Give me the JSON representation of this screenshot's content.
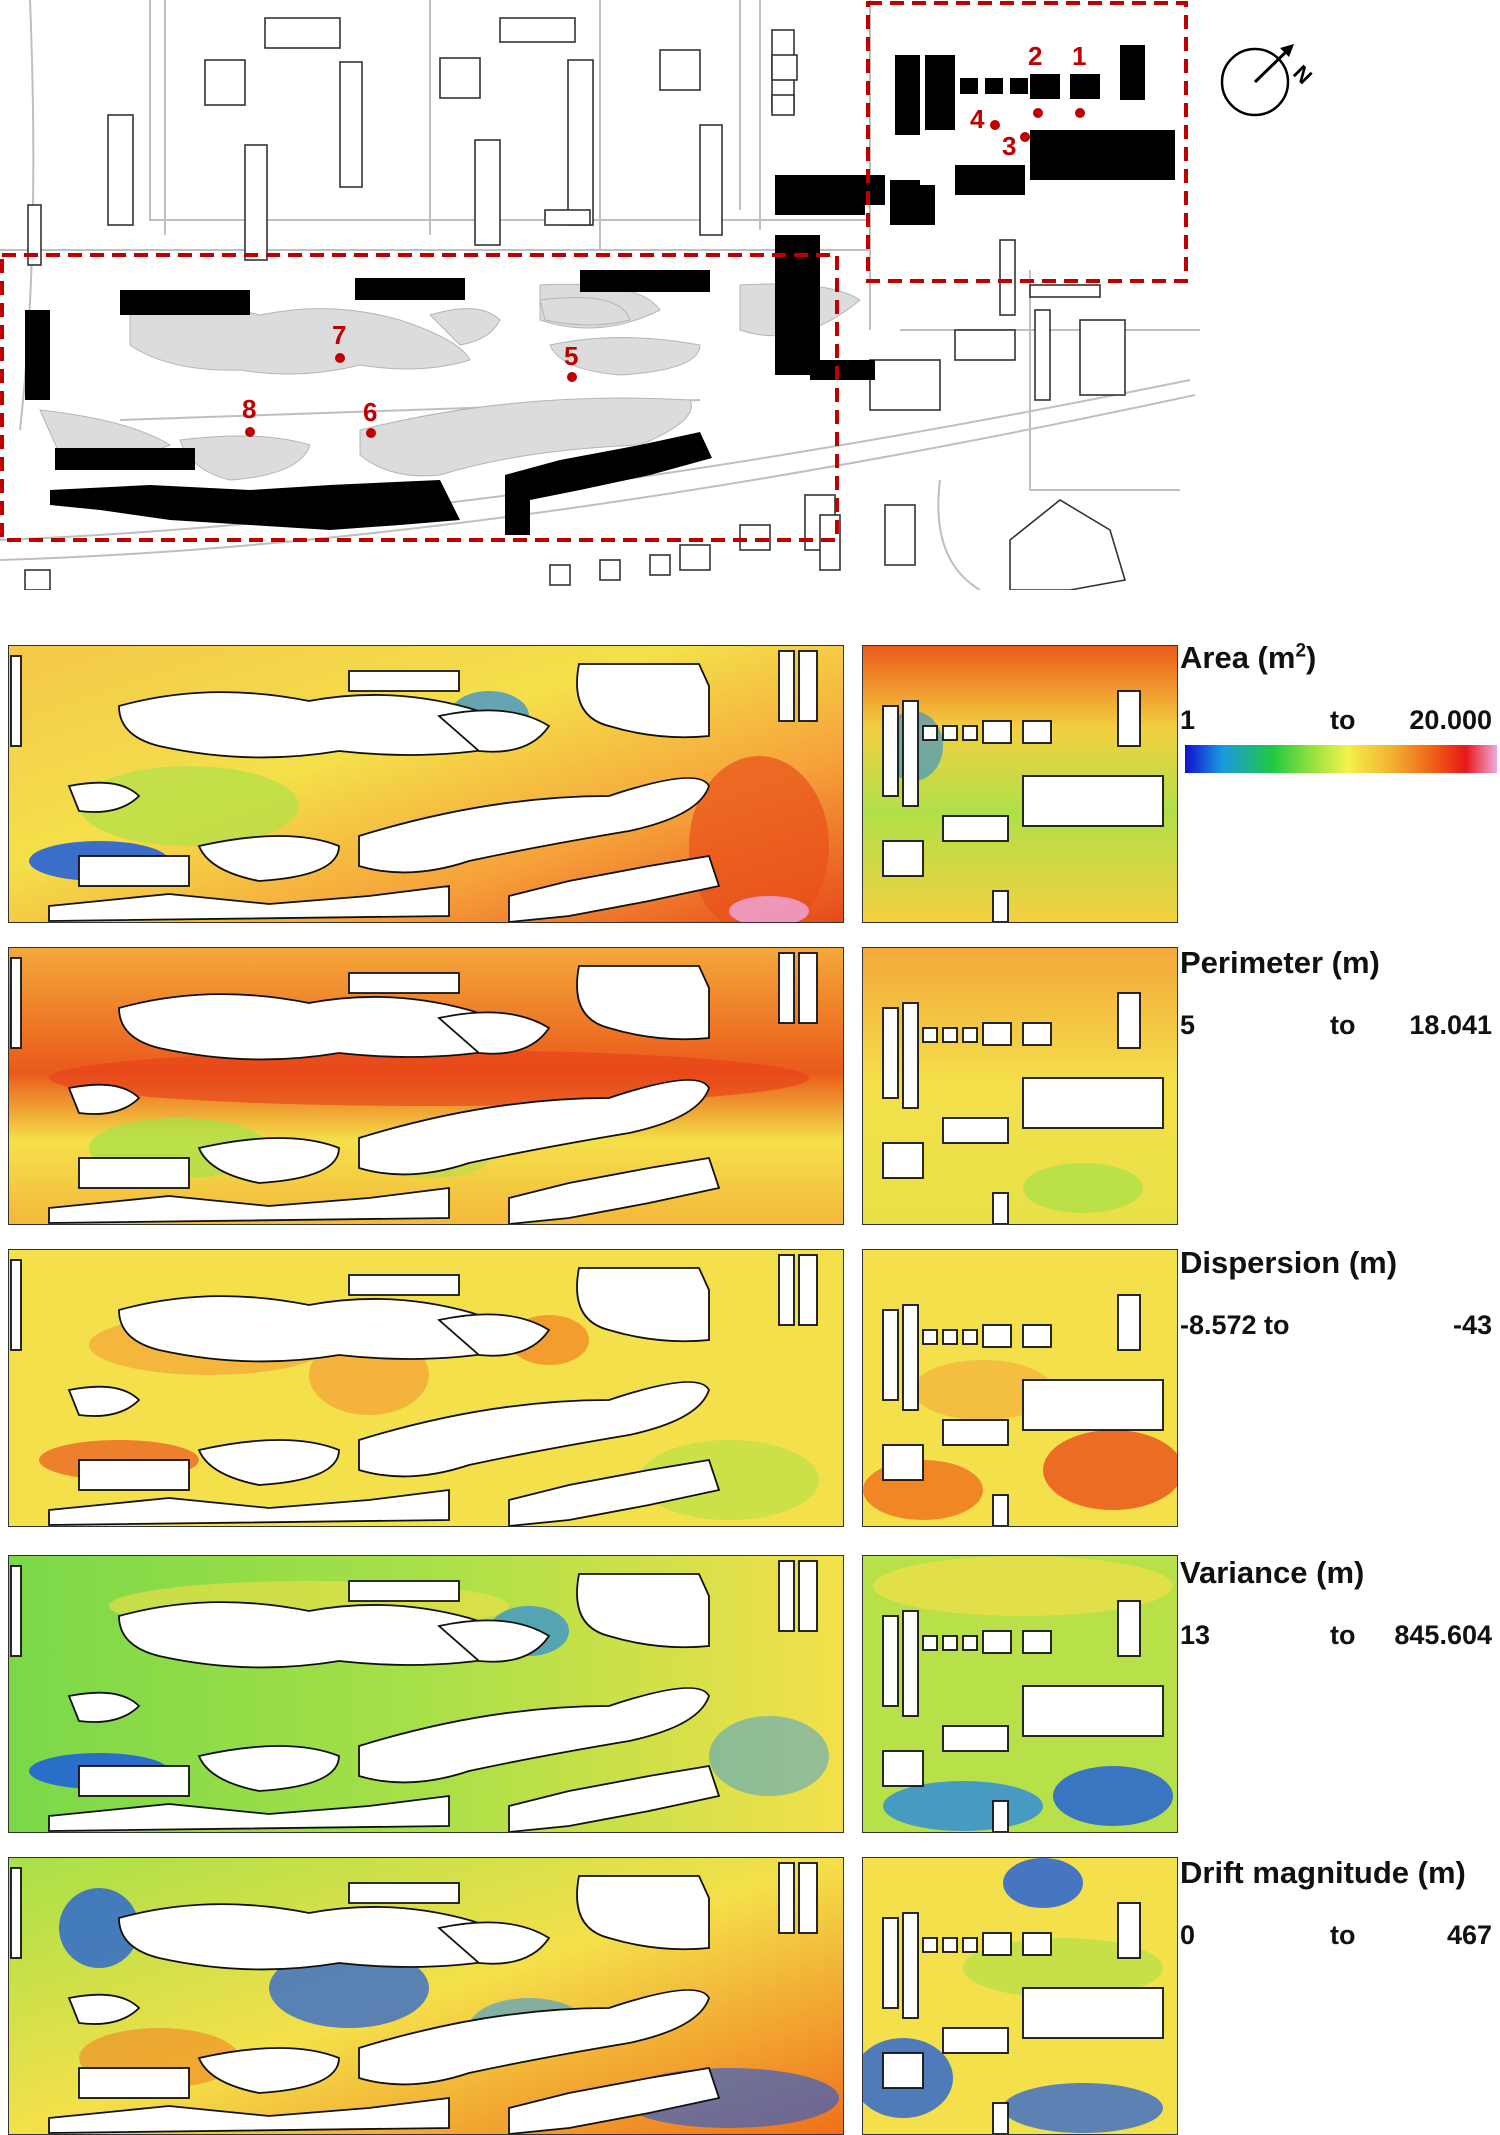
{
  "map": {
    "compass_label": "N",
    "markers": [
      {
        "label": "1"
      },
      {
        "label": "2"
      },
      {
        "label": "3"
      },
      {
        "label": "4"
      },
      {
        "label": "5"
      },
      {
        "label": "6"
      },
      {
        "label": "7"
      },
      {
        "label": "8"
      }
    ]
  },
  "legend": {
    "area": {
      "title": "Area (m",
      "title_sup": "2",
      "title_end": ")",
      "min": "1",
      "to": "to",
      "max": "20.000"
    },
    "perimeter": {
      "title": "Perimeter (m)",
      "min": "5",
      "to": "to",
      "max": "18.041"
    },
    "dispersion": {
      "title": "Dispersion (m)",
      "min": "-8.572 to",
      "max": "-43"
    },
    "variance": {
      "title": "Variance (m)",
      "min": "13",
      "to": "to",
      "max": "845.604"
    },
    "drift": {
      "title": "Drift magnitude (m)",
      "min": "0",
      "to": "to",
      "max": "467"
    }
  },
  "colorbar": [
    "#1010d0",
    "#1a9ae0",
    "#20c840",
    "#8fe040",
    "#f2f24a",
    "#f4b232",
    "#f06a1a",
    "#e61818",
    "#f0a8e0"
  ],
  "accent_color": "#c00000"
}
